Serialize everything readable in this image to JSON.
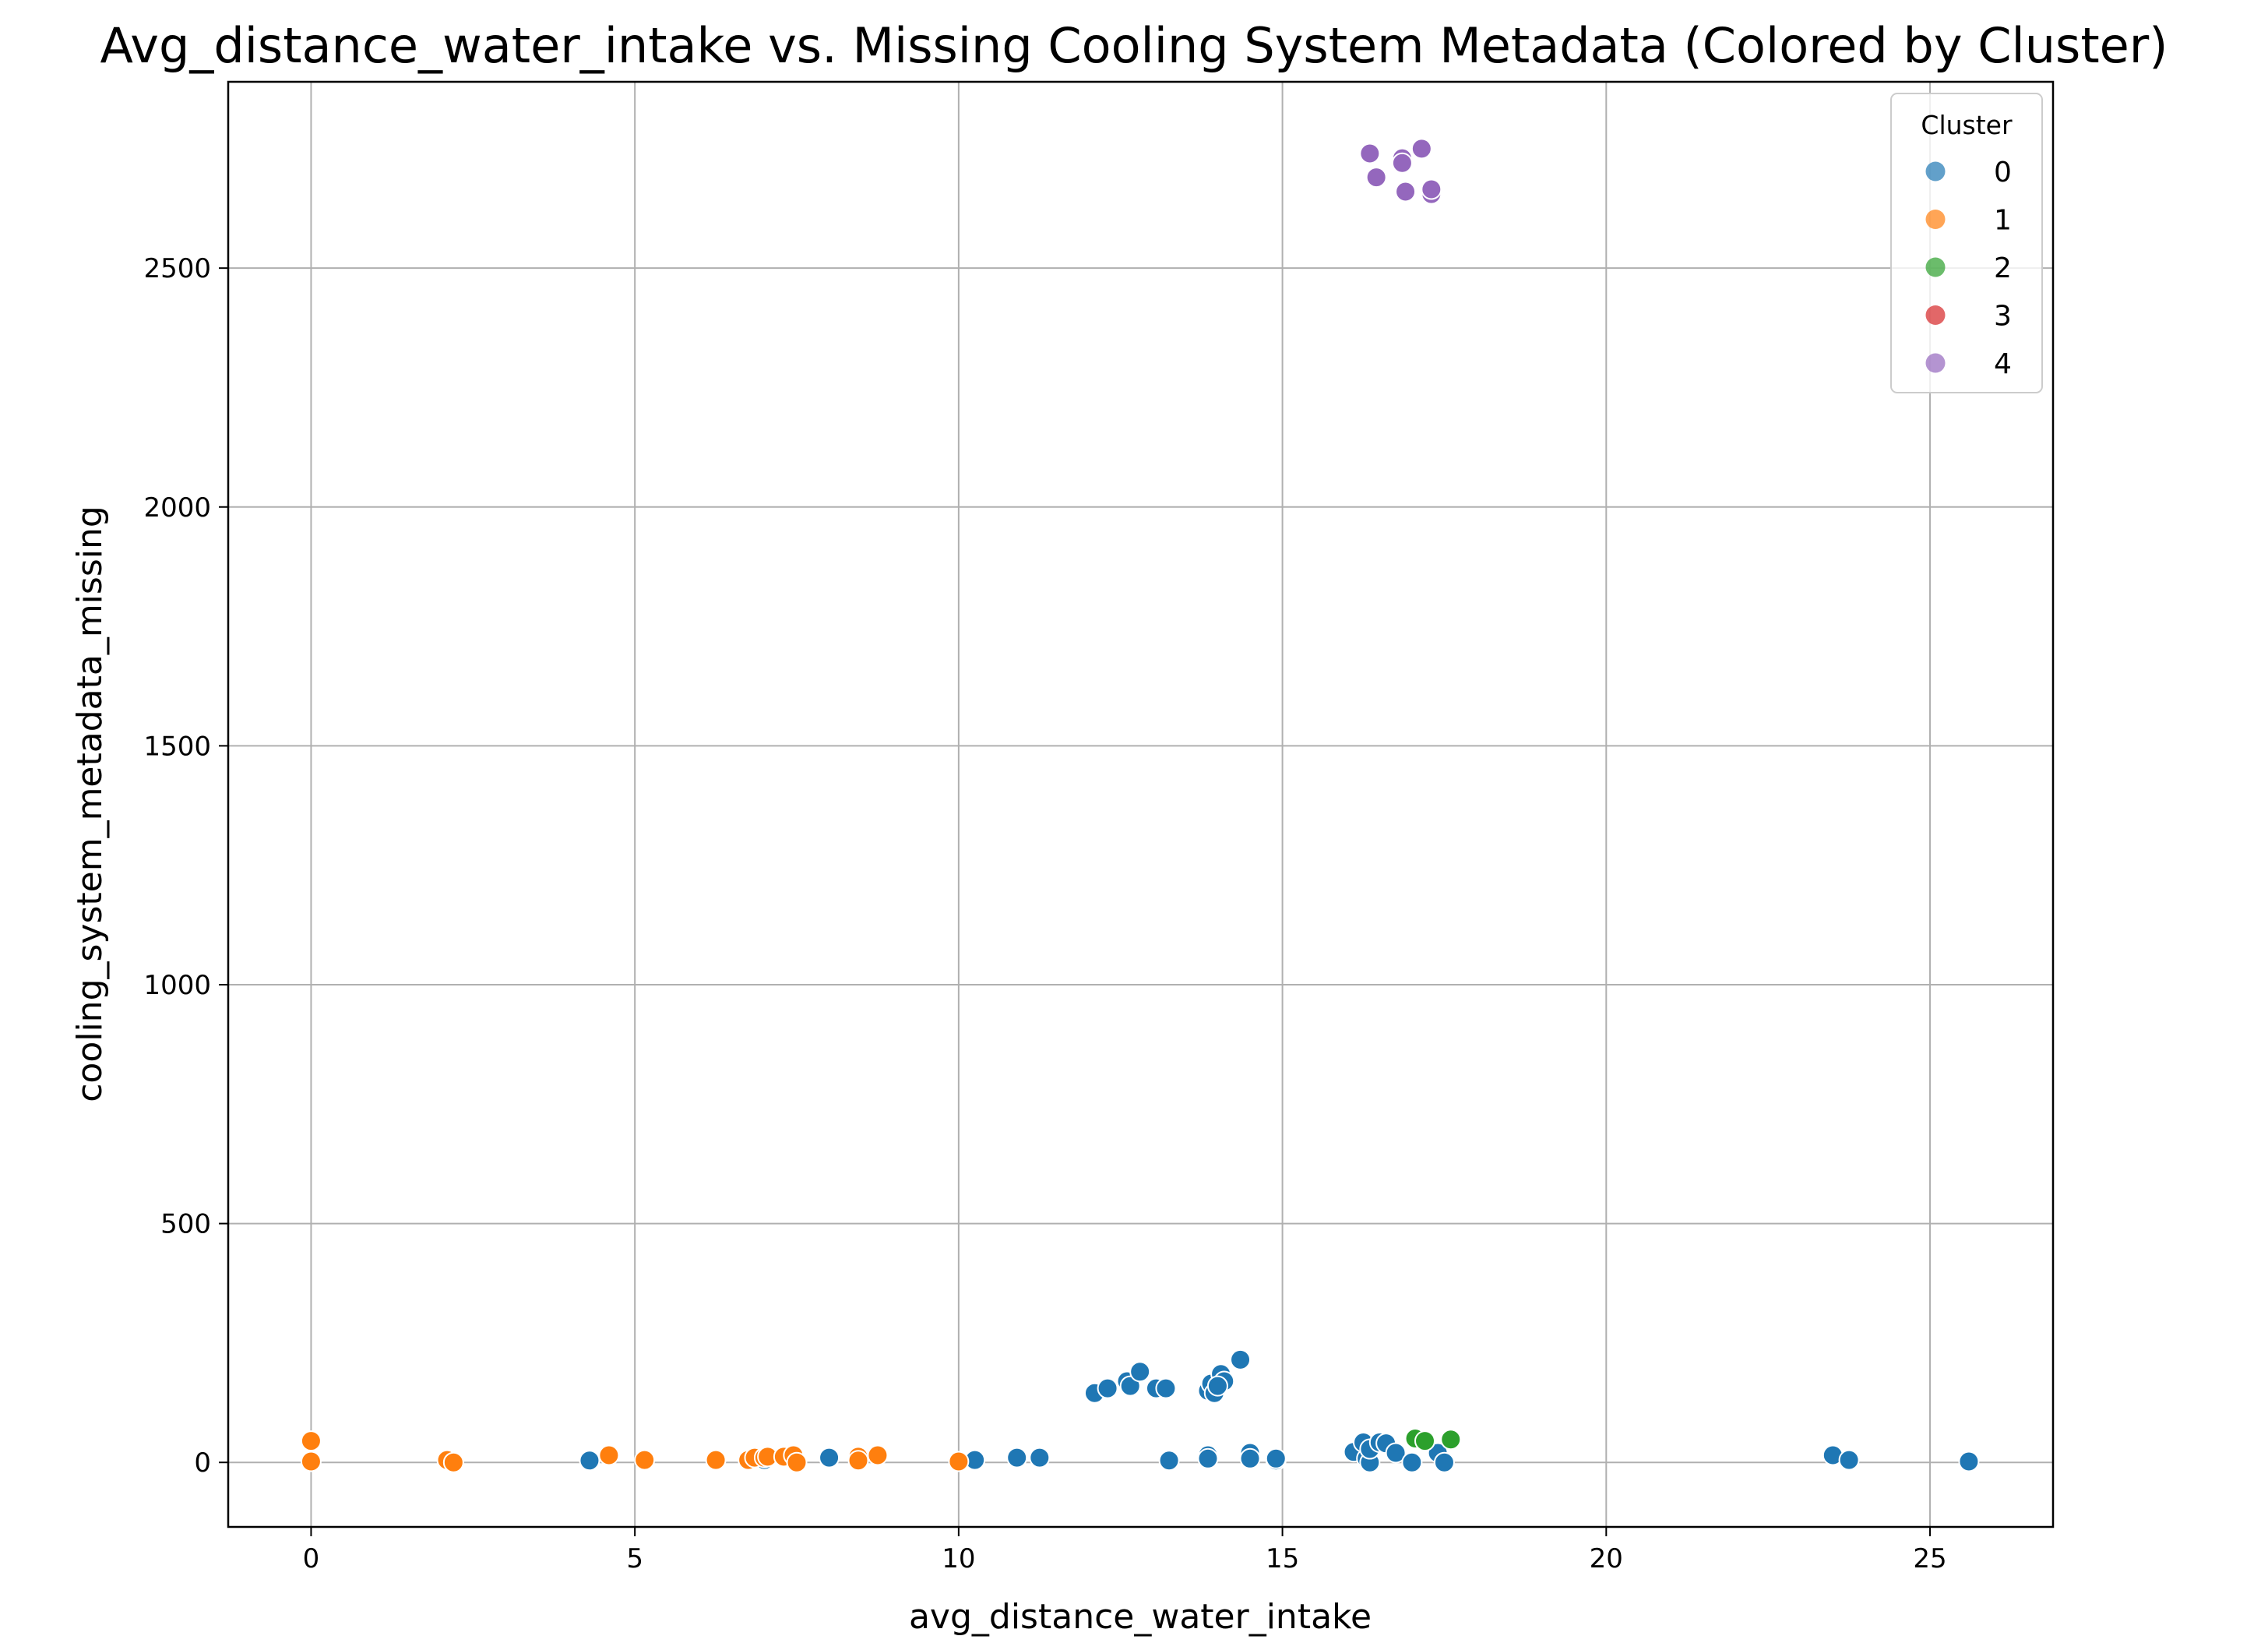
{
  "chart_data": {
    "type": "scatter",
    "title": "Avg_distance_water_intake vs. Missing Cooling System Metadata (Colored by Cluster)",
    "xlabel": "avg_distance_water_intake",
    "ylabel": "cooling_system_metadata_missing",
    "xlim": [
      -1.28,
      26.9
    ],
    "ylim": [
      -135,
      2890
    ],
    "xticks": [
      0,
      5,
      10,
      15,
      20,
      25
    ],
    "yticks": [
      0,
      500,
      1000,
      1500,
      2000,
      2500
    ],
    "grid": true,
    "legend": {
      "title": "Cluster",
      "placement": "top-right",
      "entries": [
        "0",
        "1",
        "2",
        "3",
        "4"
      ]
    },
    "colors": {
      "0": "#1f77b4",
      "1": "#ff7f0e",
      "2": "#2ca02c",
      "3": "#d62728",
      "4": "#9467bd"
    },
    "series": [
      {
        "name": "0",
        "points": [
          [
            4.3,
            4
          ],
          [
            7.0,
            5
          ],
          [
            8.0,
            10
          ],
          [
            10.25,
            5
          ],
          [
            10.9,
            10
          ],
          [
            11.25,
            10
          ],
          [
            12.1,
            145
          ],
          [
            12.3,
            155
          ],
          [
            12.6,
            170
          ],
          [
            12.65,
            160
          ],
          [
            12.8,
            190
          ],
          [
            13.05,
            155
          ],
          [
            13.2,
            155
          ],
          [
            13.25,
            4
          ],
          [
            13.85,
            150
          ],
          [
            13.9,
            165
          ],
          [
            13.95,
            145
          ],
          [
            14.05,
            185
          ],
          [
            14.1,
            170
          ],
          [
            14.0,
            160
          ],
          [
            14.35,
            215
          ],
          [
            13.85,
            15
          ],
          [
            13.85,
            8
          ],
          [
            14.5,
            20
          ],
          [
            14.5,
            8
          ],
          [
            14.9,
            4
          ],
          [
            14.9,
            8
          ],
          [
            16.1,
            22
          ],
          [
            16.25,
            42
          ],
          [
            16.3,
            8
          ],
          [
            16.35,
            0
          ],
          [
            16.35,
            28
          ],
          [
            16.5,
            42
          ],
          [
            16.6,
            40
          ],
          [
            16.75,
            20
          ],
          [
            17.0,
            0
          ],
          [
            17.4,
            20
          ],
          [
            17.5,
            0
          ],
          [
            23.5,
            15
          ],
          [
            23.75,
            5
          ],
          [
            25.6,
            2
          ]
        ]
      },
      {
        "name": "1",
        "points": [
          [
            0.0,
            45
          ],
          [
            0.0,
            2
          ],
          [
            2.1,
            5
          ],
          [
            2.2,
            0
          ],
          [
            4.6,
            15
          ],
          [
            5.15,
            5
          ],
          [
            6.25,
            5
          ],
          [
            6.75,
            5
          ],
          [
            6.85,
            10
          ],
          [
            7.0,
            10
          ],
          [
            7.05,
            12
          ],
          [
            7.3,
            12
          ],
          [
            7.45,
            15
          ],
          [
            7.5,
            0
          ],
          [
            8.45,
            12
          ],
          [
            8.45,
            4
          ],
          [
            8.75,
            15
          ],
          [
            10.0,
            2
          ]
        ]
      },
      {
        "name": "2",
        "points": [
          [
            17.05,
            50
          ],
          [
            17.2,
            45
          ],
          [
            17.6,
            48
          ]
        ]
      },
      {
        "name": "3",
        "points": []
      },
      {
        "name": "4",
        "points": [
          [
            16.35,
            2740
          ],
          [
            16.45,
            2690
          ],
          [
            16.85,
            2730
          ],
          [
            16.85,
            2720
          ],
          [
            16.9,
            2660
          ],
          [
            17.15,
            2750
          ],
          [
            17.3,
            2655
          ],
          [
            17.3,
            2665
          ]
        ]
      }
    ]
  }
}
